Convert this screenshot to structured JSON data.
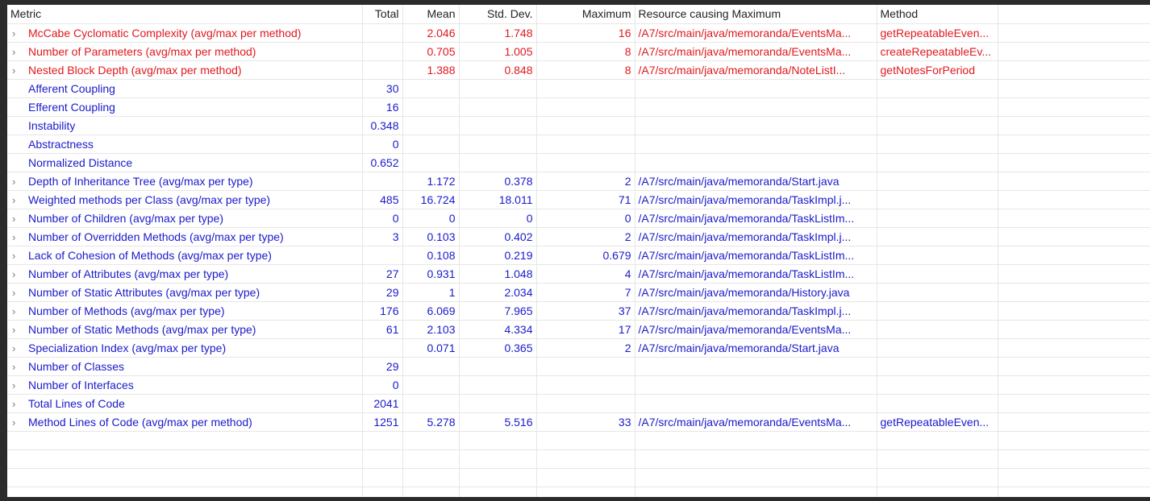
{
  "headers": {
    "metric": "Metric",
    "total": "Total",
    "mean": "Mean",
    "std": "Std. Dev.",
    "max": "Maximum",
    "resource": "Resource causing Maximum",
    "method": "Method"
  },
  "colors": {
    "warning": "#e0191e",
    "normal": "#1a1acc"
  },
  "rows": [
    {
      "expandable": true,
      "warn": true,
      "metric": "McCabe Cyclomatic Complexity (avg/max per method)",
      "total": "",
      "mean": "2.046",
      "std": "1.748",
      "max": "16",
      "resource": "/A7/src/main/java/memoranda/EventsMa...",
      "method": "getRepeatableEven..."
    },
    {
      "expandable": true,
      "warn": true,
      "metric": "Number of Parameters (avg/max per method)",
      "total": "",
      "mean": "0.705",
      "std": "1.005",
      "max": "8",
      "resource": "/A7/src/main/java/memoranda/EventsMa...",
      "method": "createRepeatableEv..."
    },
    {
      "expandable": true,
      "warn": true,
      "metric": "Nested Block Depth (avg/max per method)",
      "total": "",
      "mean": "1.388",
      "std": "0.848",
      "max": "8",
      "resource": "/A7/src/main/java/memoranda/NoteListI...",
      "method": "getNotesForPeriod"
    },
    {
      "expandable": false,
      "warn": false,
      "metric": "Afferent Coupling",
      "total": "30",
      "mean": "",
      "std": "",
      "max": "",
      "resource": "",
      "method": ""
    },
    {
      "expandable": false,
      "warn": false,
      "metric": "Efferent Coupling",
      "total": "16",
      "mean": "",
      "std": "",
      "max": "",
      "resource": "",
      "method": ""
    },
    {
      "expandable": false,
      "warn": false,
      "metric": "Instability",
      "total": "0.348",
      "mean": "",
      "std": "",
      "max": "",
      "resource": "",
      "method": ""
    },
    {
      "expandable": false,
      "warn": false,
      "metric": "Abstractness",
      "total": "0",
      "mean": "",
      "std": "",
      "max": "",
      "resource": "",
      "method": ""
    },
    {
      "expandable": false,
      "warn": false,
      "metric": "Normalized Distance",
      "total": "0.652",
      "mean": "",
      "std": "",
      "max": "",
      "resource": "",
      "method": ""
    },
    {
      "expandable": true,
      "warn": false,
      "metric": "Depth of Inheritance Tree (avg/max per type)",
      "total": "",
      "mean": "1.172",
      "std": "0.378",
      "max": "2",
      "resource": "/A7/src/main/java/memoranda/Start.java",
      "method": ""
    },
    {
      "expandable": true,
      "warn": false,
      "metric": "Weighted methods per Class (avg/max per type)",
      "total": "485",
      "mean": "16.724",
      "std": "18.011",
      "max": "71",
      "resource": "/A7/src/main/java/memoranda/TaskImpl.j...",
      "method": ""
    },
    {
      "expandable": true,
      "warn": false,
      "metric": "Number of Children (avg/max per type)",
      "total": "0",
      "mean": "0",
      "std": "0",
      "max": "0",
      "resource": "/A7/src/main/java/memoranda/TaskListIm...",
      "method": ""
    },
    {
      "expandable": true,
      "warn": false,
      "metric": "Number of Overridden Methods (avg/max per type)",
      "total": "3",
      "mean": "0.103",
      "std": "0.402",
      "max": "2",
      "resource": "/A7/src/main/java/memoranda/TaskImpl.j...",
      "method": ""
    },
    {
      "expandable": true,
      "warn": false,
      "metric": "Lack of Cohesion of Methods (avg/max per type)",
      "total": "",
      "mean": "0.108",
      "std": "0.219",
      "max": "0.679",
      "resource": "/A7/src/main/java/memoranda/TaskListIm...",
      "method": ""
    },
    {
      "expandable": true,
      "warn": false,
      "metric": "Number of Attributes (avg/max per type)",
      "total": "27",
      "mean": "0.931",
      "std": "1.048",
      "max": "4",
      "resource": "/A7/src/main/java/memoranda/TaskListIm...",
      "method": ""
    },
    {
      "expandable": true,
      "warn": false,
      "metric": "Number of Static Attributes (avg/max per type)",
      "total": "29",
      "mean": "1",
      "std": "2.034",
      "max": "7",
      "resource": "/A7/src/main/java/memoranda/History.java",
      "method": ""
    },
    {
      "expandable": true,
      "warn": false,
      "metric": "Number of Methods (avg/max per type)",
      "total": "176",
      "mean": "6.069",
      "std": "7.965",
      "max": "37",
      "resource": "/A7/src/main/java/memoranda/TaskImpl.j...",
      "method": ""
    },
    {
      "expandable": true,
      "warn": false,
      "metric": "Number of Static Methods (avg/max per type)",
      "total": "61",
      "mean": "2.103",
      "std": "4.334",
      "max": "17",
      "resource": "/A7/src/main/java/memoranda/EventsMa...",
      "method": ""
    },
    {
      "expandable": true,
      "warn": false,
      "metric": "Specialization Index (avg/max per type)",
      "total": "",
      "mean": "0.071",
      "std": "0.365",
      "max": "2",
      "resource": "/A7/src/main/java/memoranda/Start.java",
      "method": ""
    },
    {
      "expandable": true,
      "warn": false,
      "metric": "Number of Classes",
      "total": "29",
      "mean": "",
      "std": "",
      "max": "",
      "resource": "",
      "method": ""
    },
    {
      "expandable": true,
      "warn": false,
      "metric": "Number of Interfaces",
      "total": "0",
      "mean": "",
      "std": "",
      "max": "",
      "resource": "",
      "method": ""
    },
    {
      "expandable": true,
      "warn": false,
      "metric": "Total Lines of Code",
      "total": "2041",
      "mean": "",
      "std": "",
      "max": "",
      "resource": "",
      "method": ""
    },
    {
      "expandable": true,
      "warn": false,
      "metric": "Method Lines of Code (avg/max per method)",
      "total": "1251",
      "mean": "5.278",
      "std": "5.516",
      "max": "33",
      "resource": "/A7/src/main/java/memoranda/EventsMa...",
      "method": "getRepeatableEven..."
    }
  ]
}
